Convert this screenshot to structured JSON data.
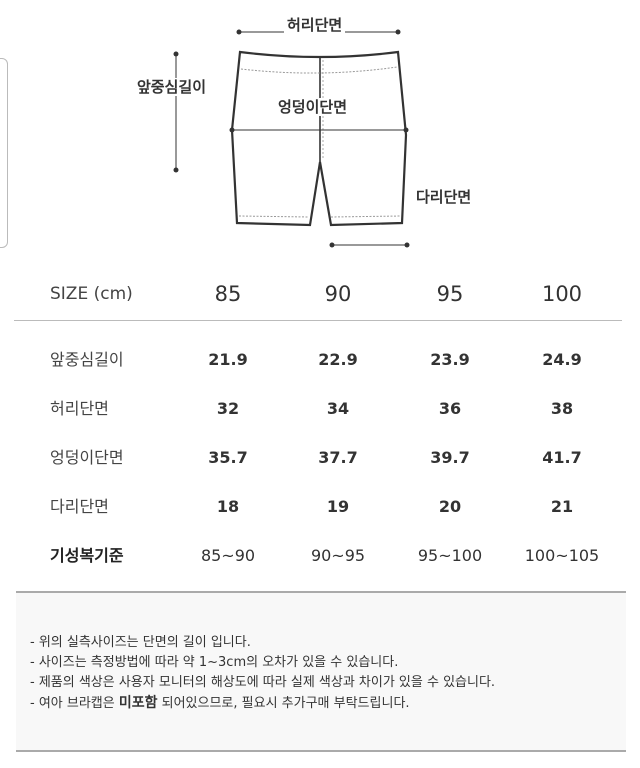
{
  "diagram": {
    "waist_label": "허리단면",
    "front_rise_label": "앞중심길이",
    "hip_label": "엉덩이단면",
    "thigh_label": "다리단면"
  },
  "table": {
    "header": {
      "label": "SIZE (cm)",
      "sizes": [
        "85",
        "90",
        "95",
        "100"
      ]
    },
    "rows": [
      {
        "label": "앞중심길이",
        "values": [
          "21.9",
          "22.9",
          "23.9",
          "24.9"
        ]
      },
      {
        "label": "허리단면",
        "values": [
          "32",
          "34",
          "36",
          "38"
        ]
      },
      {
        "label": "엉덩이단면",
        "values": [
          "35.7",
          "37.7",
          "39.7",
          "41.7"
        ]
      },
      {
        "label": "다리단면",
        "values": [
          "18",
          "19",
          "20",
          "21"
        ]
      },
      {
        "label": "기성복기준",
        "values": [
          "85~90",
          "90~95",
          "95~100",
          "100~105"
        ]
      }
    ]
  },
  "notice": {
    "lines": [
      "- 위의 실측사이즈는 단면의 길이 입니다.",
      "- 사이즈는 측정방법에 따라 약 1~3cm의 오차가 있을 수 있습니다.",
      "- 제품의 색상은 사용자 모니터의 해상도에 따라 실제 색상과 차이가 있을 수 있습니다."
    ],
    "last_prefix": "- 여아 브라캡은 ",
    "last_bold": "미포함",
    "last_suffix": " 되어있으므로, 필요시 추가구매 부탁드립니다."
  }
}
